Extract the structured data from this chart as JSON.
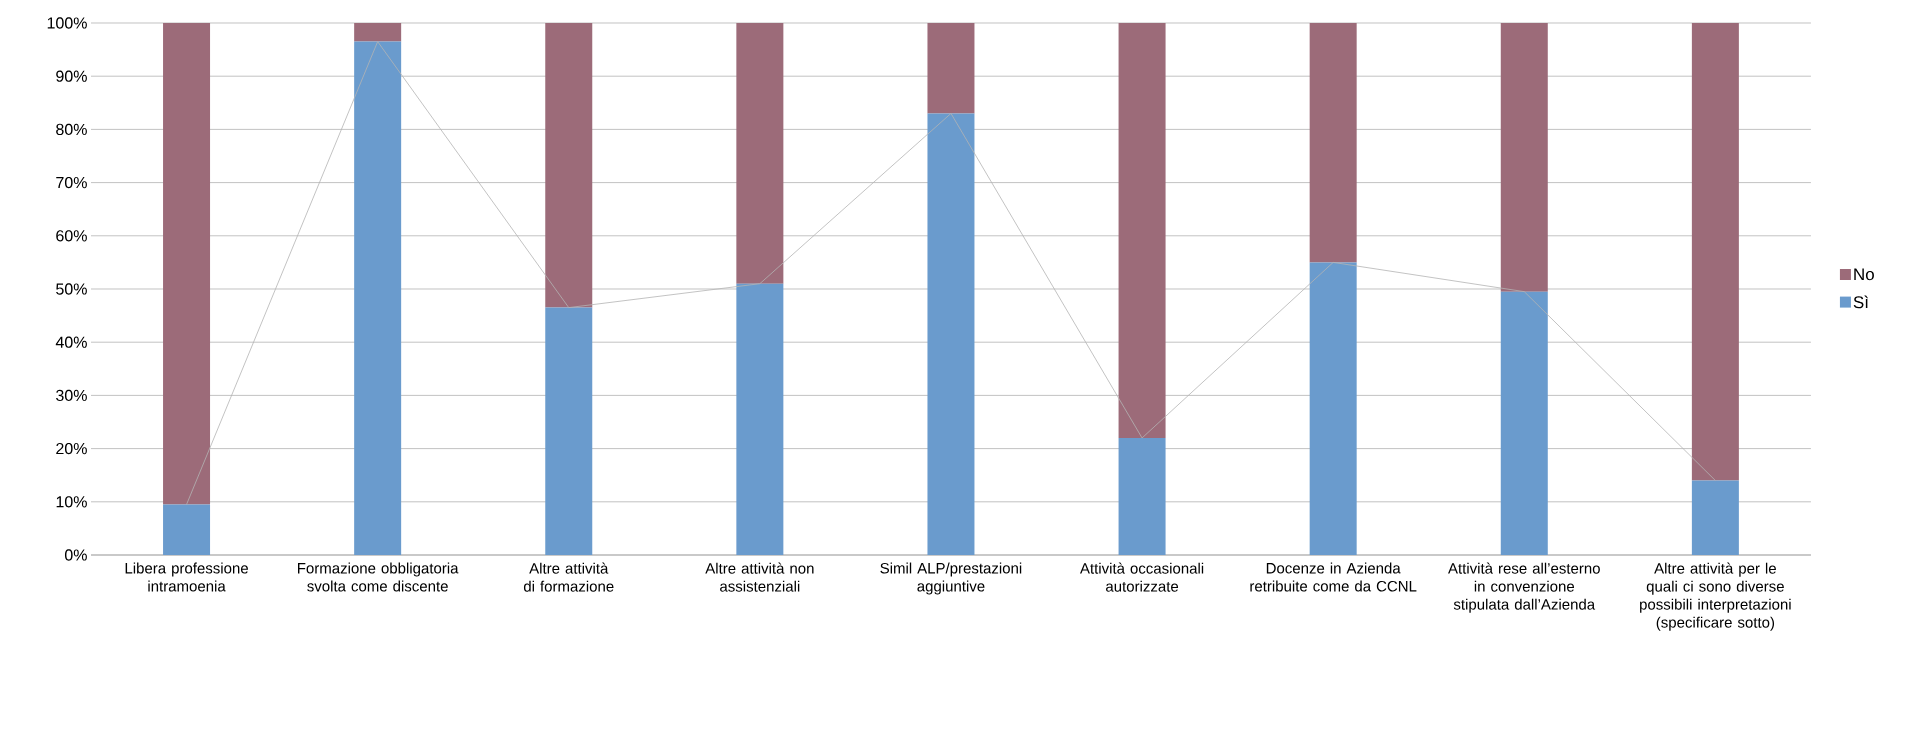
{
  "chart_data": {
    "type": "bar",
    "stacked": true,
    "categories": [
      "Libera professione intramoenia",
      "Formazione obbligatoria svolta come discente",
      "Altre attività di formazione",
      "Altre attività non assistenziali",
      "Simil ALP/prestazioni aggiuntive",
      "Attività occasionali autorizzate",
      "Docenze in Azienda retribuite come da CCNL",
      "Attività rese all’esterno in convenzione stipulata dall’Azienda",
      "Altre attività per le quali ci sono diverse possibili interpretazioni (specificare sotto)"
    ],
    "series": [
      {
        "name": "Sì",
        "color": "#6a9bcd",
        "values": [
          9.5,
          96.5,
          46.5,
          51,
          83,
          22,
          55,
          49.5,
          14
        ]
      },
      {
        "name": "No",
        "color": "#9c6b79",
        "values": [
          90.5,
          3.5,
          53.5,
          49,
          17,
          78,
          45,
          50.5,
          86
        ]
      },
      {
        "type": "line",
        "color": "#b4b4b4",
        "values": [
          9.5,
          96.5,
          46.5,
          51,
          83,
          22,
          55,
          49.5,
          14
        ]
      }
    ],
    "ylim": [
      0,
      100
    ],
    "yticks": [
      {
        "value": 0,
        "label": "0%"
      },
      {
        "value": 10,
        "label": "10%"
      },
      {
        "value": 20,
        "label": "20%"
      },
      {
        "value": 30,
        "label": "30%"
      },
      {
        "value": 40,
        "label": "40%"
      },
      {
        "value": 50,
        "label": "50%"
      },
      {
        "value": 60,
        "label": "60%"
      },
      {
        "value": 70,
        "label": "70%"
      },
      {
        "value": 80,
        "label": "80%"
      },
      {
        "value": 90,
        "label": "90%"
      },
      {
        "value": 100,
        "label": "100%"
      }
    ],
    "grid": "y",
    "legend": "right"
  }
}
